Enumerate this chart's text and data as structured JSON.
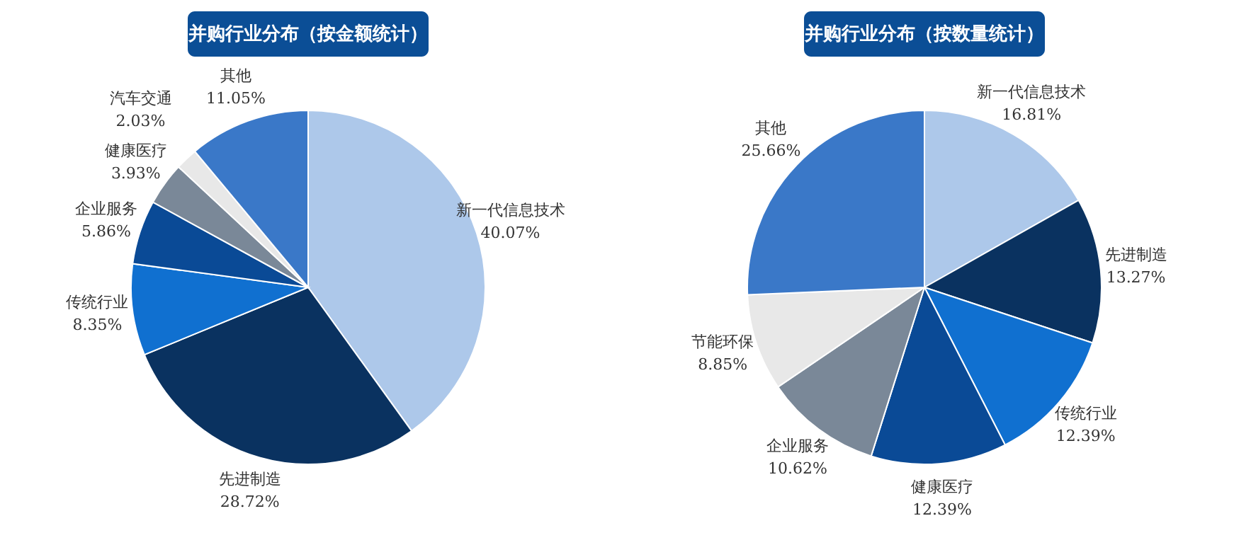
{
  "chart_data": [
    {
      "type": "pie",
      "title": "并购行业分布（按金额统计）",
      "categories": [
        "新一代信息技术",
        "先进制造",
        "传统行业",
        "企业服务",
        "健康医疗",
        "汽车交通",
        "其他"
      ],
      "values": [
        40.07,
        28.72,
        8.35,
        5.86,
        3.93,
        2.03,
        11.05
      ],
      "value_labels": [
        "40.07%",
        "28.72%",
        "8.35%",
        "5.86%",
        "3.93%",
        "2.03%",
        "11.05%"
      ],
      "colors": [
        "#adc8ea",
        "#0a3260",
        "#1070d0",
        "#0a4a96",
        "#7a8898",
        "#e8e8e8",
        "#3a78c8"
      ],
      "legend": false
    },
    {
      "type": "pie",
      "title": "并购行业分布（按数量统计）",
      "categories": [
        "新一代信息技术",
        "先进制造",
        "传统行业",
        "健康医疗",
        "企业服务",
        "节能环保",
        "其他"
      ],
      "values": [
        16.81,
        13.27,
        12.39,
        12.39,
        10.62,
        8.85,
        25.66
      ],
      "value_labels": [
        "16.81%",
        "13.27%",
        "12.39%",
        "12.39%",
        "10.62%",
        "8.85%",
        "25.66%"
      ],
      "colors": [
        "#adc8ea",
        "#0a3260",
        "#1070d0",
        "#0a4a96",
        "#7a8898",
        "#e8e8e8",
        "#3a78c8"
      ],
      "legend": false
    }
  ]
}
